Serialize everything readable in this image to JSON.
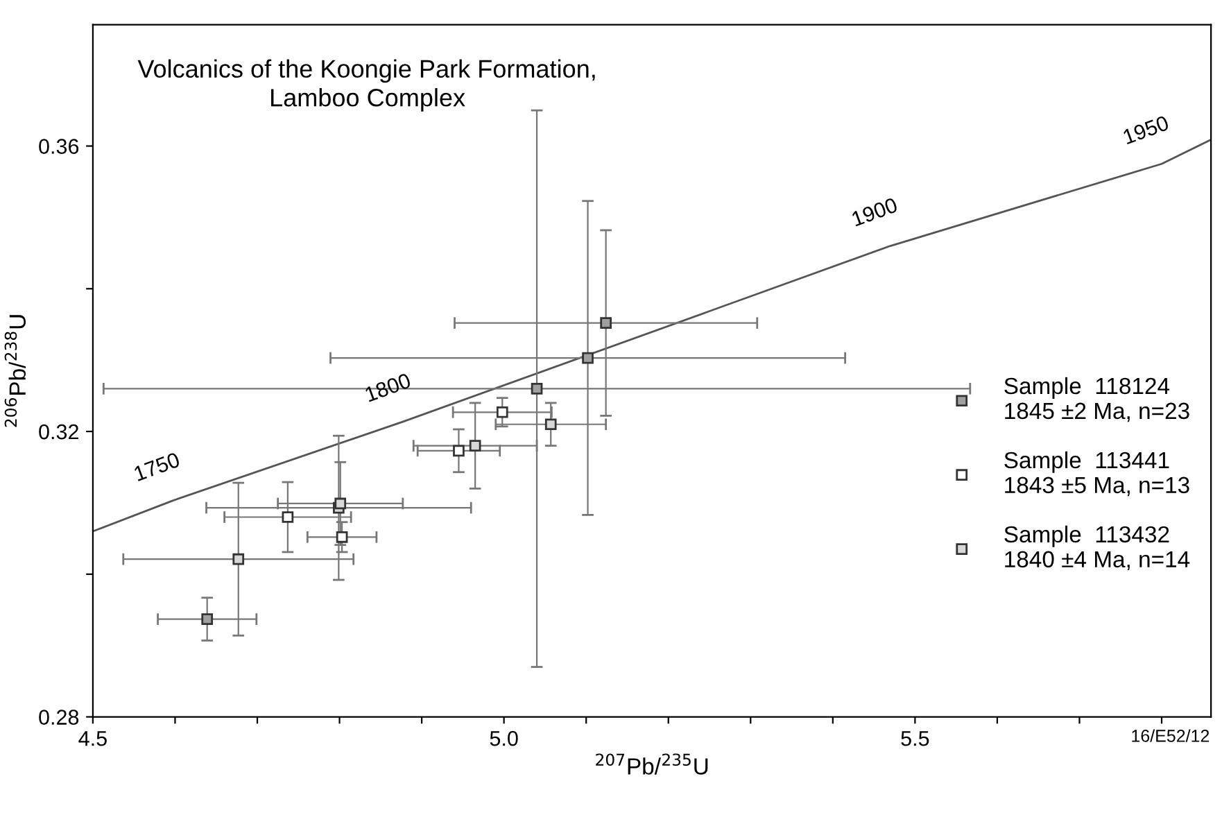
{
  "chart_data": {
    "type": "scatter",
    "title": "Volcanics of the Koongie Park Formation,\nLamboo Complex",
    "xlabel": "$^{207}$Pb/$^{235}$U",
    "ylabel": "$^{206}$Pb/$^{238}$U",
    "xlim": [
      4.5,
      5.86
    ],
    "ylim": [
      0.28,
      0.377
    ],
    "xticks": [
      4.5,
      {
        "value": 4.6,
        "label": null
      },
      {
        "value": 4.7,
        "label": null
      },
      {
        "value": 4.8,
        "label": null
      },
      {
        "value": 4.9,
        "label": null
      },
      {
        "value": 5.0,
        "label": "5.0"
      },
      {
        "value": 5.1,
        "label": null
      },
      {
        "value": 5.2,
        "label": null
      },
      {
        "value": 5.3,
        "label": null
      },
      {
        "value": 5.4,
        "label": null
      },
      5.5,
      {
        "value": 5.6,
        "label": null
      },
      {
        "value": 5.7,
        "label": null
      },
      {
        "value": 5.8,
        "label": null
      }
    ],
    "yticks": [
      0.28,
      {
        "value": 0.3,
        "label": null
      },
      0.32,
      {
        "value": 0.34,
        "label": null
      },
      0.36
    ],
    "grid": false,
    "legend": "right",
    "marker": "square",
    "series": [
      {
        "type": "line",
        "color": "#555555",
        "marker": "none",
        "x": [
          4.5,
          4.597,
          4.878,
          5.47,
          5.8,
          5.86
        ],
        "values": [
          0.306,
          0.3103,
          0.3214,
          0.346,
          0.3575,
          0.3609
        ]
      },
      {
        "name": "Sample  118124\n1845 ±2 Ma, n=23",
        "color": "#a0a0a0",
        "x": [
          5.04,
          5.102,
          5.124,
          4.639
        ],
        "values": [
          0.326,
          0.3303,
          0.3352,
          0.2937
        ],
        "xerrors": [
          0.527,
          0.313,
          0.184,
          0.06
        ],
        "errors": [
          0.039,
          0.022,
          0.013,
          0.003
        ]
      },
      {
        "name": "Sample  113441\n1843 ±5 Ma, n=13",
        "color": "#ffffff",
        "x": [
          4.737,
          4.803,
          4.945,
          4.998
        ],
        "values": [
          0.308,
          0.3052,
          0.3173,
          0.3227
        ],
        "xerrors": [
          0.077,
          0.042,
          0.05,
          0.06
        ],
        "errors": [
          0.0049,
          0.0021,
          0.003,
          0.002
        ]
      },
      {
        "name": "Sample  113432\n1840 ±4 Ma, n=14",
        "color": "#d8d8d8",
        "x": [
          4.677,
          4.799,
          4.801,
          4.965,
          5.057
        ],
        "values": [
          0.3021,
          0.3093,
          0.3099,
          0.318,
          0.321
        ],
        "xerrors": [
          0.14,
          0.161,
          0.076,
          0.075,
          0.067
        ],
        "errors": [
          0.0107,
          0.0101,
          0.0058,
          0.006,
          0.003
        ]
      }
    ],
    "annotations": [
      {
        "text": "1750",
        "x": 4.597,
        "y": 0.3103
      },
      {
        "text": "1800",
        "x": 4.878,
        "y": 0.3214
      },
      {
        "text": "1900",
        "x": 5.47,
        "y": 0.346
      },
      {
        "text": "1950",
        "x": 5.8,
        "y": 0.3575
      },
      "16/E52/12"
    ]
  }
}
